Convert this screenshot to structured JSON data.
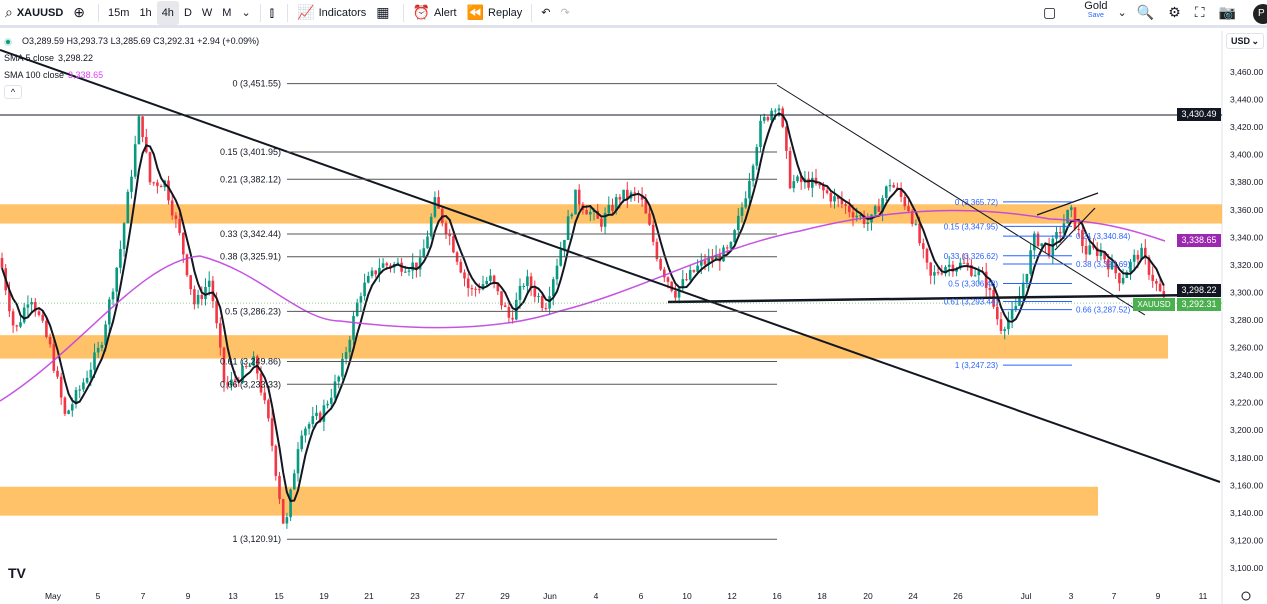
{
  "toolbar": {
    "symbol": "XAUUSD",
    "intervals": [
      "15m",
      "1h",
      "4h",
      "D",
      "W",
      "M"
    ],
    "active_interval": "4h",
    "indicators": "Indicators",
    "alert": "Alert",
    "replay": "Replay",
    "layout_name": "Gold",
    "layout_save": "Save",
    "avatar": "P"
  },
  "legend": {
    "ohlc": "O3,289.59 H3,293.73 L3,285.69 C3,292.31 +2.94 (+0.09%)",
    "sma5_label": "SMA 5 close",
    "sma5_value": "3,298.22",
    "sma100_label": "SMA 100 close",
    "sma100_value": "3,338.65"
  },
  "currency": "USD",
  "colors": {
    "up": "#089981",
    "down": "#f23645",
    "sma100": "#9c27b0",
    "zone": "#ffb74d",
    "fib": "#2962ff",
    "price_badge": "#4caf50"
  },
  "price_axis": [
    "3,460.00",
    "3,440.00",
    "3,420.00",
    "3,400.00",
    "3,380.00",
    "3,360.00",
    "3,340.00",
    "3,320.00",
    "3,300.00",
    "3,280.00",
    "3,260.00",
    "3,240.00",
    "3,220.00",
    "3,200.00",
    "3,180.00",
    "3,160.00",
    "3,140.00",
    "3,120.00",
    "3,100.00"
  ],
  "time_axis": [
    "May",
    "5",
    "7",
    "9",
    "13",
    "15",
    "19",
    "21",
    "23",
    "27",
    "29",
    "Jun",
    "4",
    "6",
    "10",
    "12",
    "16",
    "18",
    "20",
    "24",
    "26",
    "Jul",
    "3",
    "7",
    "9",
    "11"
  ],
  "badges": {
    "hline": "3,430.49",
    "sma100": "3,338.65",
    "sma5": "3,298.22",
    "symbol": "XAUUSD",
    "last": "3,292.31"
  },
  "fib_large": [
    {
      "level": "0",
      "price": 3451.55,
      "label": "0 (3,451.55)"
    },
    {
      "level": "0.15",
      "price": 3401.95,
      "label": "0.15 (3,401.95)"
    },
    {
      "level": "0.21",
      "price": 3382.12,
      "label": "0.21 (3,382.12)"
    },
    {
      "level": "0.33",
      "price": 3342.44,
      "label": "0.33 (3,342.44)"
    },
    {
      "level": "0.38",
      "price": 3325.91,
      "label": "0.38 (3,325.91)"
    },
    {
      "level": "0.5",
      "price": 3286.23,
      "label": "0.5 (3,286.23)"
    },
    {
      "level": "0.61",
      "price": 3249.86,
      "label": "0.61 (3,249.86)"
    },
    {
      "level": "0.66",
      "price": 3233.33,
      "label": "0.66 (3,233.33)"
    },
    {
      "level": "1",
      "price": 3120.91,
      "label": "1 (3,120.91)"
    }
  ],
  "fib_small": [
    {
      "level": "0",
      "price": 3365.72,
      "label": "0 (3,365.72)"
    },
    {
      "level": "0.15",
      "price": 3347.95,
      "label": "0.15 (3,347.95)"
    },
    {
      "level": "0.21",
      "price": 3340.84,
      "label": "0.21 (3,340.84)"
    },
    {
      "level": "0.33",
      "price": 3326.62,
      "label": "0.33 (3,326.62)"
    },
    {
      "level": "0.38",
      "price": 3320.69,
      "label": "0.38 (3,320.69)"
    },
    {
      "level": "0.5",
      "price": 3306.48,
      "label": "0.5 (3,306.48)"
    },
    {
      "level": "0.61",
      "price": 3293.44,
      "label": "0.61 (3,293.44)"
    },
    {
      "level": "0.66",
      "price": 3287.52,
      "label": "0.66 (3,287.52)"
    },
    {
      "level": "1",
      "price": 3247.23,
      "label": "1 (3,247.23)"
    }
  ],
  "zones": [
    {
      "top": 3364,
      "bottom": 3350
    },
    {
      "top": 3269,
      "bottom": 3252
    },
    {
      "top": 3159,
      "bottom": 3138
    }
  ],
  "hline_price": 3430.49
}
